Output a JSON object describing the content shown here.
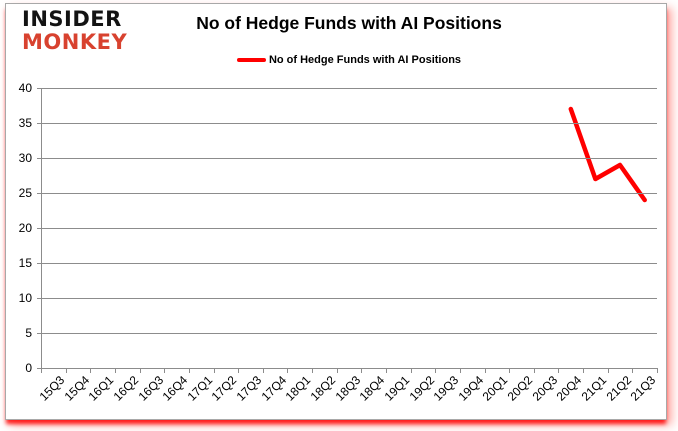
{
  "logo": {
    "line1": "INSIDER",
    "line2": "MONKEY"
  },
  "header": {
    "title": "No of Hedge Funds with AI Positions"
  },
  "legend": {
    "label": "No of Hedge Funds with AI Positions"
  },
  "colors": {
    "series_red": "#ff0000",
    "logo_black": "#131313",
    "logo_red": "#d8422f",
    "grid_gray": "#8c8c8c",
    "text_black": "#000000"
  },
  "chart_data": {
    "type": "line",
    "title": "No of Hedge Funds with AI Positions",
    "categories": [
      "15Q3",
      "15Q4",
      "16Q1",
      "16Q2",
      "16Q3",
      "16Q4",
      "17Q1",
      "17Q2",
      "17Q3",
      "17Q4",
      "18Q1",
      "18Q2",
      "18Q3",
      "18Q4",
      "19Q1",
      "19Q2",
      "19Q3",
      "19Q4",
      "20Q1",
      "20Q2",
      "20Q3",
      "20Q4",
      "21Q1",
      "21Q2",
      "21Q3"
    ],
    "series": [
      {
        "name": "No of Hedge Funds with AI Positions",
        "color": "#ff0000",
        "values": [
          null,
          null,
          null,
          null,
          null,
          null,
          null,
          null,
          null,
          null,
          null,
          null,
          null,
          null,
          null,
          null,
          null,
          null,
          null,
          null,
          null,
          37,
          27,
          29,
          24
        ]
      }
    ],
    "xlabel": "",
    "ylabel": "",
    "ylim": [
      0,
      40
    ],
    "yticks": [
      0,
      5,
      10,
      15,
      20,
      25,
      30,
      35,
      40
    ],
    "grid": true,
    "legend_position": "top-center",
    "x_tick_rotation_deg": -45
  }
}
